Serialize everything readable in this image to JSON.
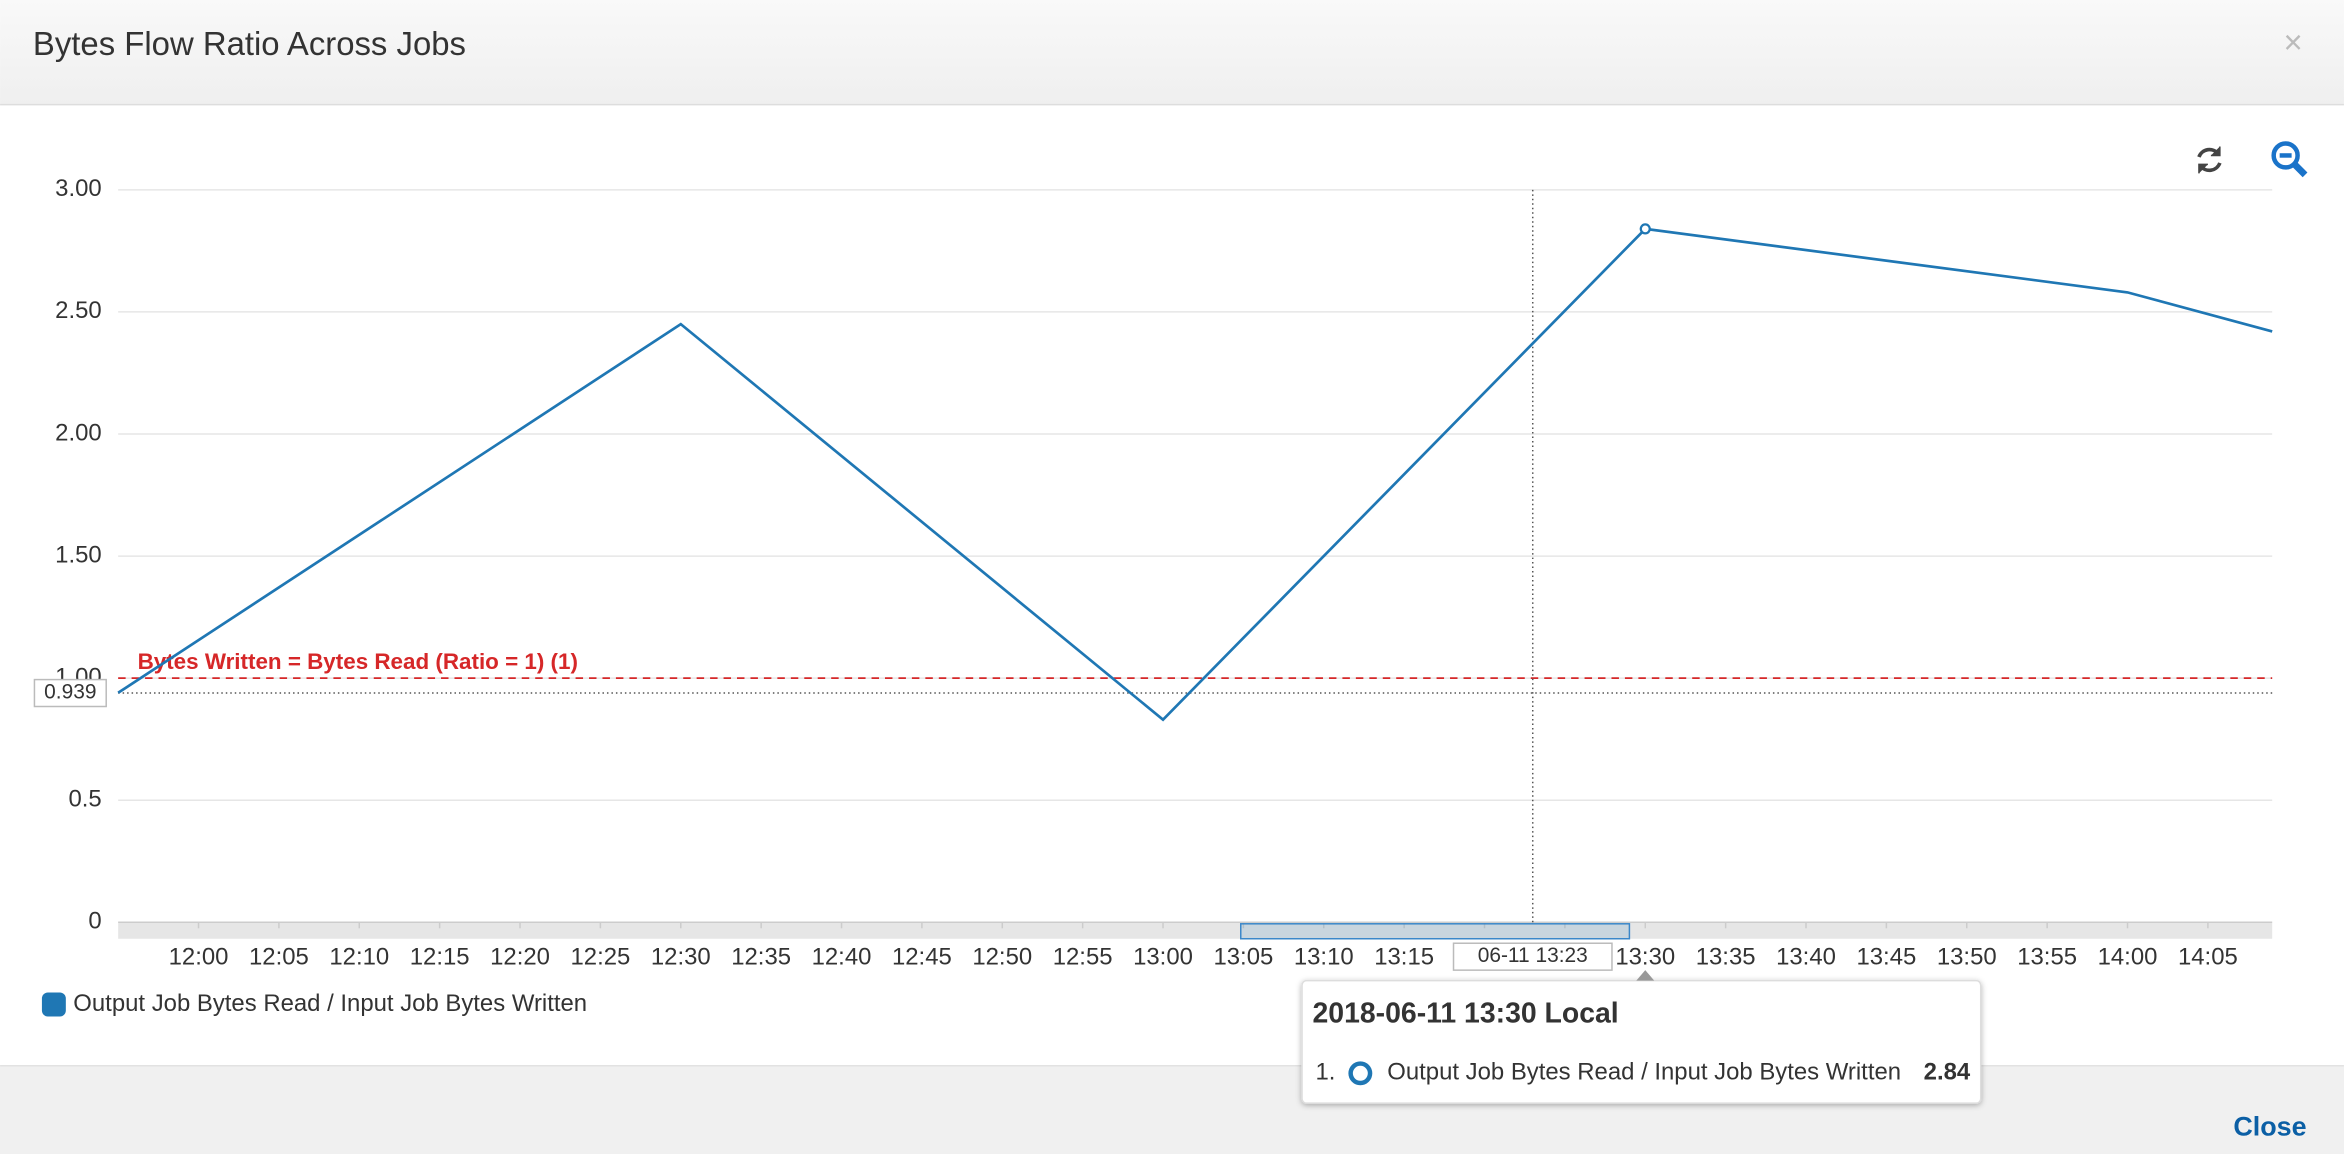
{
  "modal": {
    "title": "Bytes Flow Ratio Across Jobs",
    "close_button": "Close"
  },
  "chart_data": {
    "type": "line",
    "x": [
      "11:55",
      "12:30",
      "13:00",
      "13:30",
      "14:00",
      "14:09"
    ],
    "series": [
      {
        "name": "Output Job Bytes Read / Input Job Bytes Written",
        "color": "#1f77b4",
        "values": [
          0.94,
          2.45,
          0.83,
          2.84,
          2.58,
          2.42
        ]
      }
    ],
    "xlim": [
      "11:55",
      "14:09"
    ],
    "xticks": [
      "12:00",
      "12:05",
      "12:10",
      "12:15",
      "12:20",
      "12:25",
      "12:30",
      "12:35",
      "12:40",
      "12:45",
      "12:50",
      "12:55",
      "13:00",
      "13:05",
      "13:10",
      "13:15",
      "13:20",
      "13:25",
      "13:30",
      "13:35",
      "13:40",
      "13:45",
      "13:50",
      "13:55",
      "14:00",
      "14:05"
    ],
    "ylim": [
      0,
      3
    ],
    "yticks": [
      0,
      0.5,
      {
        "value": 1,
        "label": "1.00"
      },
      {
        "value": 1.5,
        "label": "1.50"
      },
      {
        "value": 2,
        "label": "2.00"
      },
      {
        "value": 2.5,
        "label": "2.50"
      },
      {
        "value": 3,
        "label": "3.00"
      }
    ],
    "grid": true,
    "annotations": [
      {
        "label": "Bytes Written = Bytes Read (Ratio = 1) (1)",
        "value": 1,
        "color": "#d62728"
      }
    ],
    "crosshair": {
      "x_label": "06-11 13:23",
      "y": 0.939
    },
    "tooltip": {
      "title": "2018-06-11 13:30 Local",
      "index": "1.",
      "point": 3
    }
  }
}
